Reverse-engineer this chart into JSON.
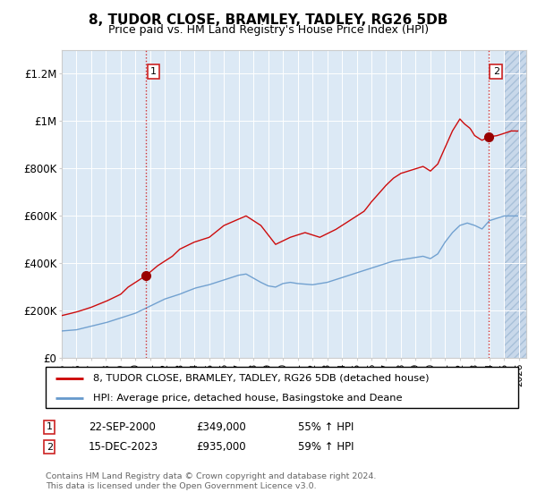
{
  "title": "8, TUDOR CLOSE, BRAMLEY, TADLEY, RG26 5DB",
  "subtitle": "Price paid vs. HM Land Registry's House Price Index (HPI)",
  "legend_line1": "8, TUDOR CLOSE, BRAMLEY, TADLEY, RG26 5DB (detached house)",
  "legend_line2": "HPI: Average price, detached house, Basingstoke and Deane",
  "annotation1_label": "1",
  "annotation1_date": "22-SEP-2000",
  "annotation1_price": "£349,000",
  "annotation1_hpi": "55% ↑ HPI",
  "annotation2_label": "2",
  "annotation2_date": "15-DEC-2023",
  "annotation2_price": "£935,000",
  "annotation2_hpi": "59% ↑ HPI",
  "footnote": "Contains HM Land Registry data © Crown copyright and database right 2024.\nThis data is licensed under the Open Government Licence v3.0.",
  "red_color": "#cc0000",
  "blue_color": "#6699cc",
  "bg_color": "#dce9f5",
  "grid_color": "#ffffff",
  "annotation_box_color": "#cc2222",
  "ylim": [
    0,
    1300000
  ],
  "xlim_start": 1995.0,
  "xlim_end": 2026.5,
  "sale1_x": 2000.72,
  "sale1_y": 349000,
  "sale2_x": 2023.96,
  "sale2_y": 935000,
  "ytick_labels": [
    "£0",
    "£200K",
    "£400K",
    "£600K",
    "£800K",
    "£1M",
    "£1.2M"
  ],
  "ytick_values": [
    0,
    200000,
    400000,
    600000,
    800000,
    1000000,
    1200000
  ]
}
